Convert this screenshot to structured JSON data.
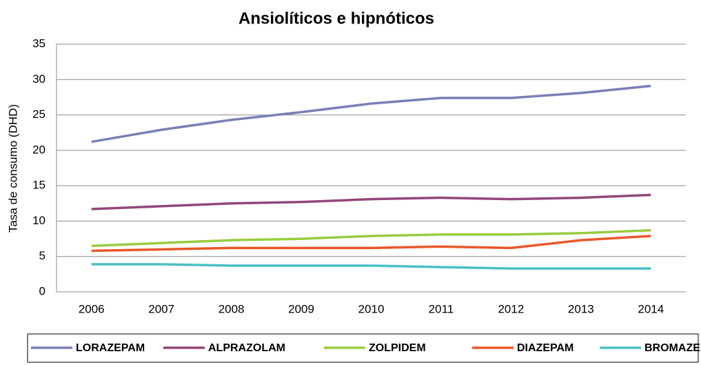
{
  "chart_data": {
    "type": "line",
    "title": "Ansiolíticos e hipnóticos",
    "y_label": "Tasa de consumo (DHD)",
    "categories": [
      "2006",
      "2007",
      "2008",
      "2009",
      "2010",
      "2011",
      "2012",
      "2013",
      "2014"
    ],
    "series": [
      {
        "name": "LORAZEPAM",
        "color": "#7b7fb5",
        "values": [
          21.2,
          22.9,
          24.3,
          25.4,
          26.6,
          27.4,
          27.4,
          28.1,
          29.1
        ]
      },
      {
        "name": "ALPRAZOLAM",
        "color": "#93477a",
        "values": [
          11.7,
          12.1,
          12.5,
          12.7,
          13.1,
          13.3,
          13.1,
          13.3,
          13.7
        ]
      },
      {
        "name": "ZOLPIDEM",
        "color": "#99cc3f",
        "values": [
          6.5,
          6.9,
          7.3,
          7.5,
          7.9,
          8.1,
          8.1,
          8.3,
          8.7
        ]
      },
      {
        "name": "DIAZEPAM",
        "color": "#e8582a",
        "values": [
          5.8,
          6.0,
          6.2,
          6.2,
          6.2,
          6.4,
          6.2,
          7.3,
          7.9
        ]
      },
      {
        "name": "BROMAZEPAM",
        "color": "#4bc0c4",
        "values": [
          3.9,
          3.9,
          3.7,
          3.7,
          3.7,
          3.5,
          3.3,
          3.3,
          3.3
        ]
      }
    ],
    "ylim": [
      0,
      35
    ],
    "yticks": [
      0,
      5,
      10,
      15,
      20,
      25,
      30,
      35
    ],
    "grid": true,
    "legend": "bottom"
  }
}
